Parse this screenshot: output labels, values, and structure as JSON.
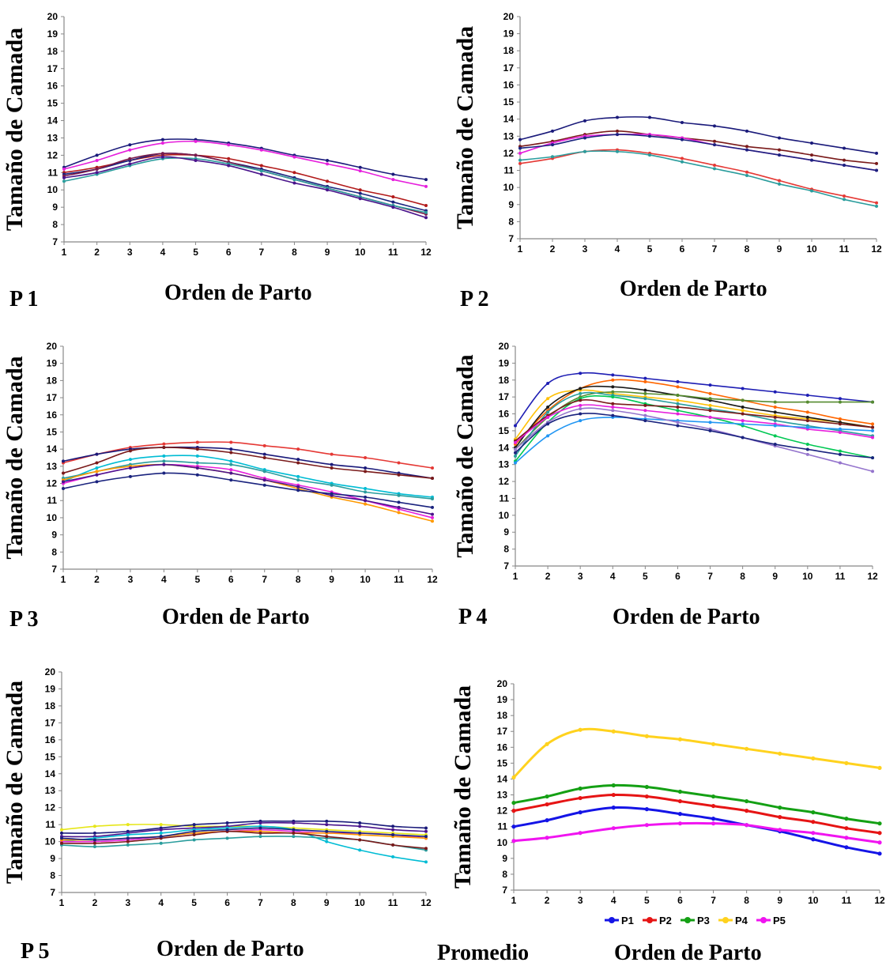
{
  "chart_data": [
    {
      "id": "p1",
      "type": "line",
      "panel_label": "P 1",
      "xlabel": "Orden de Parto",
      "ylabel": "Tamaño de Camada",
      "x": [
        1,
        2,
        3,
        4,
        5,
        6,
        7,
        8,
        9,
        10,
        11,
        12
      ],
      "ylim": [
        7,
        20
      ],
      "yticks": [
        7,
        8,
        9,
        10,
        11,
        12,
        13,
        14,
        15,
        16,
        17,
        18,
        19,
        20
      ],
      "grid": false,
      "legend": "none",
      "series": [
        {
          "color": "#1a1a7a",
          "marker": true,
          "values": [
            11.3,
            12.0,
            12.6,
            12.9,
            12.9,
            12.7,
            12.4,
            12.0,
            11.7,
            11.3,
            10.9,
            10.6
          ]
        },
        {
          "color": "#e61fdc",
          "marker": true,
          "values": [
            11.2,
            11.7,
            12.3,
            12.7,
            12.8,
            12.6,
            12.3,
            11.9,
            11.5,
            11.1,
            10.6,
            10.2
          ]
        },
        {
          "color": "#b21a1a",
          "marker": true,
          "values": [
            11.0,
            11.3,
            11.7,
            12.0,
            12.0,
            11.8,
            11.4,
            11.0,
            10.5,
            10.0,
            9.6,
            9.1
          ]
        },
        {
          "color": "#1a237e",
          "marker": true,
          "values": [
            10.9,
            11.2,
            11.7,
            12.1,
            12.0,
            11.6,
            11.2,
            10.7,
            10.2,
            9.8,
            9.3,
            8.8
          ]
        },
        {
          "color": "#7a1a4a",
          "marker": true,
          "values": [
            10.8,
            11.2,
            11.8,
            12.1,
            12.0,
            11.6,
            11.1,
            10.6,
            10.1,
            9.6,
            9.1,
            8.6
          ]
        },
        {
          "color": "#2a9d9d",
          "marker": true,
          "values": [
            10.5,
            10.9,
            11.4,
            11.8,
            11.8,
            11.5,
            11.1,
            10.6,
            10.1,
            9.6,
            9.1,
            8.7
          ]
        },
        {
          "color": "#4a148c",
          "marker": true,
          "values": [
            10.7,
            11.0,
            11.5,
            11.9,
            11.7,
            11.4,
            10.9,
            10.4,
            10.0,
            9.5,
            9.0,
            8.4
          ]
        }
      ]
    },
    {
      "id": "p2",
      "type": "line",
      "panel_label": "P 2",
      "xlabel": "Orden de Parto",
      "ylabel": "Tamaño de Camada",
      "x": [
        1,
        2,
        3,
        4,
        5,
        6,
        7,
        8,
        9,
        10,
        11,
        12
      ],
      "ylim": [
        7,
        20
      ],
      "yticks": [
        7,
        8,
        9,
        10,
        11,
        12,
        13,
        14,
        15,
        16,
        17,
        18,
        19,
        20
      ],
      "grid": false,
      "legend": "none",
      "series": [
        {
          "color": "#1a1a7a",
          "marker": true,
          "values": [
            12.8,
            13.3,
            13.9,
            14.1,
            14.1,
            13.8,
            13.6,
            13.3,
            12.9,
            12.6,
            12.3,
            12.0
          ]
        },
        {
          "color": "#7a1a1a",
          "marker": true,
          "values": [
            12.4,
            12.7,
            13.1,
            13.3,
            13.1,
            12.9,
            12.7,
            12.4,
            12.2,
            11.9,
            11.6,
            11.4
          ]
        },
        {
          "color": "#e61fdc",
          "marker": true,
          "values": [
            12.0,
            12.6,
            13.0,
            13.1,
            13.1,
            12.9,
            12.5,
            12.2,
            11.9,
            11.6,
            11.3,
            11.0
          ]
        },
        {
          "color": "#1a237e",
          "marker": true,
          "values": [
            12.3,
            12.5,
            12.9,
            13.1,
            13.0,
            12.8,
            12.5,
            12.2,
            11.9,
            11.6,
            11.3,
            11.0
          ]
        },
        {
          "color": "#e53935",
          "marker": true,
          "values": [
            11.4,
            11.7,
            12.1,
            12.2,
            12.0,
            11.7,
            11.3,
            10.9,
            10.4,
            9.9,
            9.5,
            9.1
          ]
        },
        {
          "color": "#2a9d9d",
          "marker": true,
          "values": [
            11.6,
            11.8,
            12.1,
            12.1,
            11.9,
            11.5,
            11.1,
            10.7,
            10.2,
            9.8,
            9.3,
            8.9
          ]
        }
      ]
    },
    {
      "id": "p3",
      "type": "line",
      "panel_label": "P 3",
      "xlabel": "Orden de Parto",
      "ylabel": "Tamaño de Camada",
      "x": [
        1,
        2,
        3,
        4,
        5,
        6,
        7,
        8,
        9,
        10,
        11,
        12
      ],
      "ylim": [
        7,
        20
      ],
      "yticks": [
        7,
        8,
        9,
        10,
        11,
        12,
        13,
        14,
        15,
        16,
        17,
        18,
        19,
        20
      ],
      "grid": false,
      "legend": "none",
      "series": [
        {
          "color": "#e53935",
          "marker": true,
          "values": [
            13.2,
            13.7,
            14.1,
            14.3,
            14.4,
            14.4,
            14.2,
            14.0,
            13.7,
            13.5,
            13.2,
            12.9
          ]
        },
        {
          "color": "#1a1a7a",
          "marker": true,
          "values": [
            13.3,
            13.7,
            14.0,
            14.1,
            14.1,
            14.0,
            13.7,
            13.4,
            13.1,
            12.9,
            12.6,
            12.3
          ]
        },
        {
          "color": "#7a1a1a",
          "marker": true,
          "values": [
            12.6,
            13.2,
            13.9,
            14.1,
            14.0,
            13.8,
            13.5,
            13.2,
            12.9,
            12.7,
            12.5,
            12.3
          ]
        },
        {
          "color": "#00bcd4",
          "marker": true,
          "values": [
            12.1,
            12.9,
            13.4,
            13.6,
            13.6,
            13.3,
            12.8,
            12.4,
            12.0,
            11.7,
            11.4,
            11.2
          ]
        },
        {
          "color": "#2a9d9d",
          "marker": true,
          "values": [
            12.3,
            12.7,
            13.1,
            13.3,
            13.2,
            13.1,
            12.7,
            12.2,
            11.9,
            11.5,
            11.3,
            11.1
          ]
        },
        {
          "color": "#e61fdc",
          "marker": true,
          "values": [
            12.0,
            12.5,
            12.9,
            13.1,
            13.0,
            12.8,
            12.3,
            11.9,
            11.5,
            11.0,
            10.5,
            10.0
          ]
        },
        {
          "color": "#ff9800",
          "marker": true,
          "values": [
            12.2,
            12.7,
            13.0,
            13.1,
            12.9,
            12.6,
            12.2,
            11.7,
            11.2,
            10.8,
            10.3,
            9.8
          ]
        },
        {
          "color": "#4a148c",
          "marker": true,
          "values": [
            12.1,
            12.5,
            12.9,
            13.1,
            12.9,
            12.6,
            12.2,
            11.8,
            11.3,
            11.0,
            10.6,
            10.2
          ]
        },
        {
          "color": "#1a237e",
          "marker": true,
          "values": [
            11.7,
            12.1,
            12.4,
            12.6,
            12.5,
            12.2,
            11.9,
            11.6,
            11.4,
            11.2,
            10.9,
            10.6
          ]
        }
      ]
    },
    {
      "id": "p4",
      "type": "line",
      "panel_label": "P 4",
      "xlabel": "Orden de Parto",
      "ylabel": "Tamaño de Camada",
      "x": [
        1,
        2,
        3,
        4,
        5,
        6,
        7,
        8,
        9,
        10,
        11,
        12
      ],
      "ylim": [
        7,
        20
      ],
      "yticks": [
        7,
        8,
        9,
        10,
        11,
        12,
        13,
        14,
        15,
        16,
        17,
        18,
        19,
        20
      ],
      "grid": false,
      "legend": "none",
      "series": [
        {
          "color": "#1e1eb4",
          "marker": true,
          "values": [
            15.3,
            17.8,
            18.4,
            18.3,
            18.1,
            17.9,
            17.7,
            17.5,
            17.3,
            17.1,
            16.9,
            16.7
          ]
        },
        {
          "color": "#ff6600",
          "marker": true,
          "values": [
            14.2,
            16.2,
            17.5,
            18.0,
            17.9,
            17.6,
            17.2,
            16.8,
            16.4,
            16.1,
            15.7,
            15.4
          ]
        },
        {
          "color": "#ffc107",
          "marker": true,
          "values": [
            14.5,
            16.9,
            17.4,
            17.2,
            17.0,
            16.8,
            16.5,
            16.2,
            15.9,
            15.7,
            15.5,
            15.2
          ]
        },
        {
          "color": "#1a1a1a",
          "marker": true,
          "values": [
            14.0,
            16.4,
            17.5,
            17.6,
            17.4,
            17.1,
            16.8,
            16.4,
            16.1,
            15.8,
            15.5,
            15.2
          ]
        },
        {
          "color": "#558b2f",
          "marker": true,
          "values": [
            13.9,
            15.8,
            17.0,
            17.3,
            17.2,
            17.1,
            16.9,
            16.8,
            16.7,
            16.7,
            16.7,
            16.7
          ]
        },
        {
          "color": "#2a9d9d",
          "marker": true,
          "values": [
            13.5,
            16.1,
            17.2,
            17.1,
            16.9,
            16.6,
            16.3,
            16.0,
            15.6,
            15.3,
            15.0,
            14.7
          ]
        },
        {
          "color": "#00c853",
          "marker": true,
          "values": [
            13.2,
            15.5,
            16.9,
            17.0,
            16.6,
            16.2,
            15.8,
            15.3,
            14.7,
            14.2,
            13.8,
            13.4
          ]
        },
        {
          "color": "#7a1a1a",
          "marker": true,
          "values": [
            14.4,
            15.9,
            16.8,
            16.6,
            16.5,
            16.4,
            16.2,
            16.0,
            15.8,
            15.6,
            15.4,
            15.2
          ]
        },
        {
          "color": "#e61fdc",
          "marker": true,
          "values": [
            14.3,
            15.8,
            16.5,
            16.4,
            16.2,
            16.0,
            15.8,
            15.6,
            15.4,
            15.1,
            14.9,
            14.6
          ]
        },
        {
          "color": "#2196f3",
          "marker": true,
          "values": [
            13.1,
            14.7,
            15.6,
            15.8,
            15.7,
            15.6,
            15.5,
            15.4,
            15.3,
            15.2,
            15.1,
            15.0
          ]
        },
        {
          "color": "#9575cd",
          "marker": true,
          "values": [
            13.9,
            15.5,
            16.3,
            16.2,
            15.9,
            15.5,
            15.1,
            14.6,
            14.1,
            13.6,
            13.1,
            12.6
          ]
        },
        {
          "color": "#1a237e",
          "marker": true,
          "values": [
            13.7,
            15.4,
            16.0,
            15.9,
            15.6,
            15.3,
            15.0,
            14.6,
            14.2,
            13.9,
            13.6,
            13.4
          ]
        }
      ]
    },
    {
      "id": "p5",
      "type": "line",
      "panel_label": "P 5",
      "xlabel": "Orden de Parto",
      "ylabel": "Tamaño de Camada",
      "x": [
        1,
        2,
        3,
        4,
        5,
        6,
        7,
        8,
        9,
        10,
        11,
        12
      ],
      "ylim": [
        7,
        20
      ],
      "yticks": [
        7,
        8,
        9,
        10,
        11,
        12,
        13,
        14,
        15,
        16,
        17,
        18,
        19,
        20
      ],
      "grid": false,
      "legend": "none",
      "series": [
        {
          "color": "#e6e619",
          "marker": true,
          "values": [
            10.7,
            10.9,
            11.0,
            11.0,
            10.9,
            10.9,
            10.9,
            10.8,
            10.7,
            10.6,
            10.5,
            10.4
          ]
        },
        {
          "color": "#1a1a7a",
          "marker": true,
          "values": [
            10.5,
            10.5,
            10.6,
            10.8,
            11.0,
            11.1,
            11.2,
            11.2,
            11.2,
            11.1,
            10.9,
            10.8
          ]
        },
        {
          "color": "#4a148c",
          "marker": true,
          "values": [
            10.3,
            10.3,
            10.5,
            10.7,
            10.8,
            10.9,
            11.1,
            11.1,
            11.0,
            10.9,
            10.7,
            10.6
          ]
        },
        {
          "color": "#00bcd4",
          "marker": true,
          "values": [
            10.0,
            10.2,
            10.4,
            10.5,
            10.7,
            10.8,
            10.9,
            10.7,
            10.0,
            9.5,
            9.1,
            8.8
          ]
        },
        {
          "color": "#2a9d9d",
          "marker": true,
          "values": [
            9.8,
            9.7,
            9.8,
            9.9,
            10.1,
            10.2,
            10.3,
            10.3,
            10.2,
            10.1,
            9.8,
            9.5
          ]
        },
        {
          "color": "#e61fdc",
          "marker": true,
          "values": [
            10.0,
            10.0,
            10.1,
            10.3,
            10.5,
            10.6,
            10.7,
            10.6,
            10.5,
            10.5,
            10.4,
            10.2
          ]
        },
        {
          "color": "#ff9800",
          "marker": true,
          "values": [
            10.1,
            10.1,
            10.2,
            10.3,
            10.5,
            10.6,
            10.6,
            10.5,
            10.5,
            10.4,
            10.3,
            10.2
          ]
        },
        {
          "color": "#7a1a1a",
          "marker": true,
          "values": [
            9.9,
            9.9,
            10.0,
            10.2,
            10.4,
            10.6,
            10.5,
            10.5,
            10.3,
            10.1,
            9.8,
            9.6
          ]
        },
        {
          "color": "#1a237e",
          "marker": true,
          "values": [
            10.2,
            10.1,
            10.2,
            10.3,
            10.6,
            10.7,
            10.8,
            10.7,
            10.6,
            10.5,
            10.4,
            10.3
          ]
        }
      ]
    },
    {
      "id": "promedio",
      "type": "line",
      "panel_label": "Promedio",
      "xlabel": "Orden de Parto",
      "ylabel": "Tamaño de Camada",
      "x": [
        1,
        2,
        3,
        4,
        5,
        6,
        7,
        8,
        9,
        10,
        11,
        12
      ],
      "ylim": [
        7,
        20
      ],
      "yticks": [
        7,
        8,
        9,
        10,
        11,
        12,
        13,
        14,
        15,
        16,
        17,
        18,
        19,
        20
      ],
      "grid": false,
      "legend": "bottom",
      "series": [
        {
          "name": "P1",
          "color": "#1414e6",
          "marker": true,
          "values": [
            11.0,
            11.4,
            11.9,
            12.2,
            12.1,
            11.8,
            11.5,
            11.1,
            10.7,
            10.2,
            9.7,
            9.3
          ]
        },
        {
          "name": "P2",
          "color": "#e61414",
          "marker": true,
          "values": [
            12.0,
            12.4,
            12.8,
            13.0,
            12.9,
            12.6,
            12.3,
            12.0,
            11.6,
            11.3,
            10.9,
            10.6
          ]
        },
        {
          "name": "P3",
          "color": "#14a014",
          "marker": true,
          "values": [
            12.5,
            12.9,
            13.4,
            13.6,
            13.5,
            13.2,
            12.9,
            12.6,
            12.2,
            11.9,
            11.5,
            11.2
          ]
        },
        {
          "name": "P4",
          "color": "#ffd21e",
          "marker": true,
          "values": [
            14.1,
            16.2,
            17.1,
            17.0,
            16.7,
            16.5,
            16.2,
            15.9,
            15.6,
            15.3,
            15.0,
            14.7
          ]
        },
        {
          "name": "P5",
          "color": "#f014f0",
          "marker": true,
          "values": [
            10.1,
            10.3,
            10.6,
            10.9,
            11.1,
            11.2,
            11.2,
            11.1,
            10.8,
            10.6,
            10.3,
            10.0
          ]
        }
      ]
    }
  ]
}
